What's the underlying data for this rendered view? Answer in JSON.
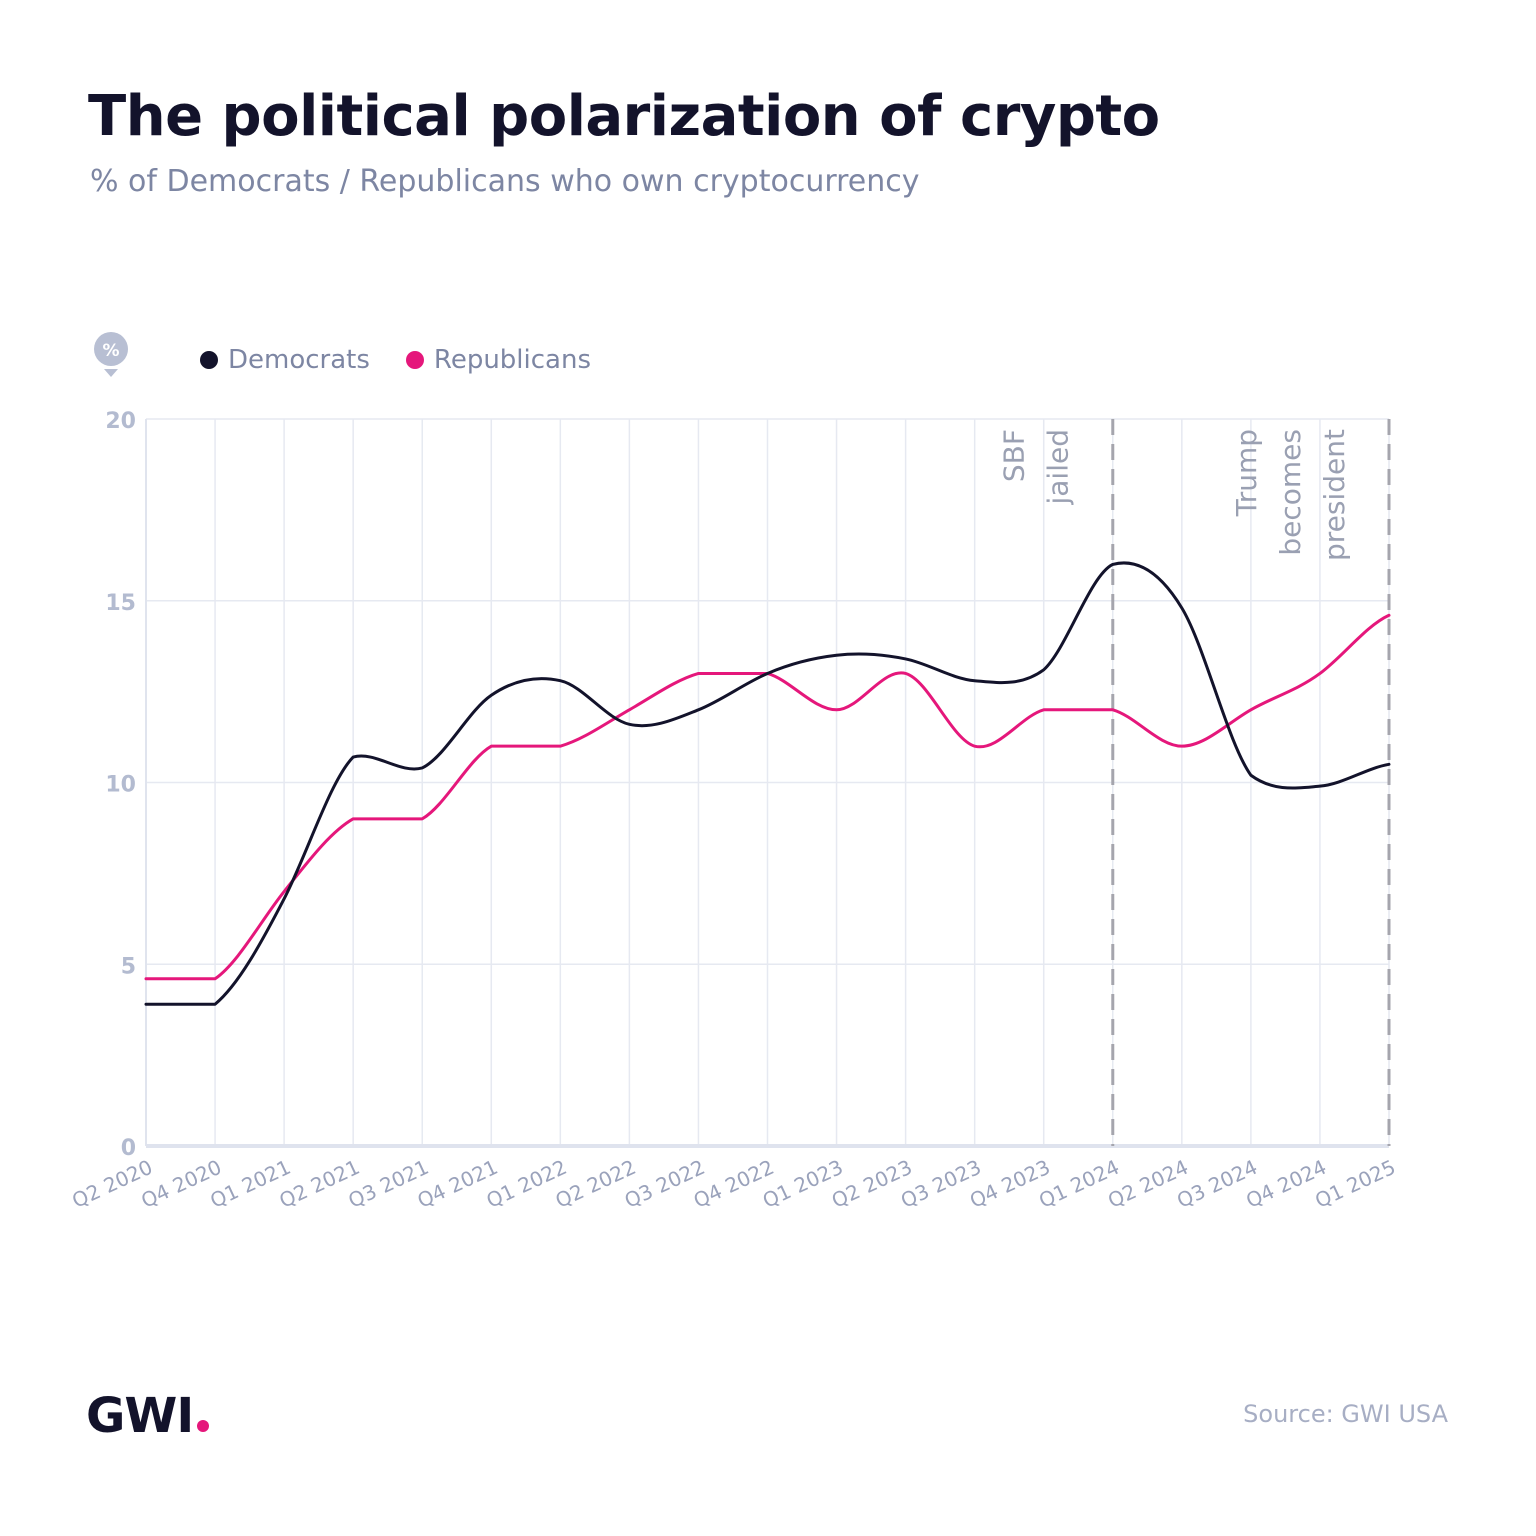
{
  "title": "The political polarization of crypto",
  "subtitle": "% of Democrats / Republicans who own cryptocurrency",
  "badge_label": "%",
  "legend": [
    {
      "label": "Democrats",
      "color": "#13132b"
    },
    {
      "label": "Republicans",
      "color": "#e5177b"
    }
  ],
  "footer": {
    "logo": "GWI",
    "source": "Source: GWI USA"
  },
  "chart_data": {
    "type": "line",
    "title": "The political polarization of crypto",
    "subtitle": "% of Democrats / Republicans who own cryptocurrency",
    "x": [
      "Q2 2020",
      "Q4 2020",
      "Q1 2021",
      "Q2 2021",
      "Q3 2021",
      "Q4 2021",
      "Q1 2022",
      "Q2 2022",
      "Q3 2022",
      "Q4 2022",
      "Q1 2023",
      "Q2 2023",
      "Q3 2023",
      "Q4 2023",
      "Q1 2024",
      "Q2 2024",
      "Q3 2024",
      "Q4 2024",
      "Q1 2025"
    ],
    "series": [
      {
        "name": "Democrats",
        "color": "#13132b",
        "values": [
          3.9,
          3.9,
          6.8,
          10.7,
          10.4,
          12.4,
          12.8,
          11.6,
          12.0,
          13.0,
          13.5,
          13.4,
          12.8,
          13.1,
          16.0,
          14.8,
          10.2,
          9.9,
          10.5
        ]
      },
      {
        "name": "Republicans",
        "color": "#e5177b",
        "values": [
          4.6,
          4.6,
          7.0,
          9.0,
          9.0,
          11.0,
          11.0,
          12.0,
          13.0,
          13.0,
          12.0,
          13.0,
          11.0,
          12.0,
          12.0,
          11.0,
          12.0,
          13.0,
          14.6
        ]
      }
    ],
    "ylim": [
      0,
      20
    ],
    "yticks": [
      0,
      5,
      10,
      15,
      20
    ],
    "grid": true,
    "legend_position": "top-left",
    "annotations": [
      {
        "at": "Q1 2024",
        "lines": [
          "SBF",
          "jailed"
        ]
      },
      {
        "at": "Q1 2025",
        "lines": [
          "Trump",
          "becomes",
          "president"
        ]
      }
    ]
  }
}
